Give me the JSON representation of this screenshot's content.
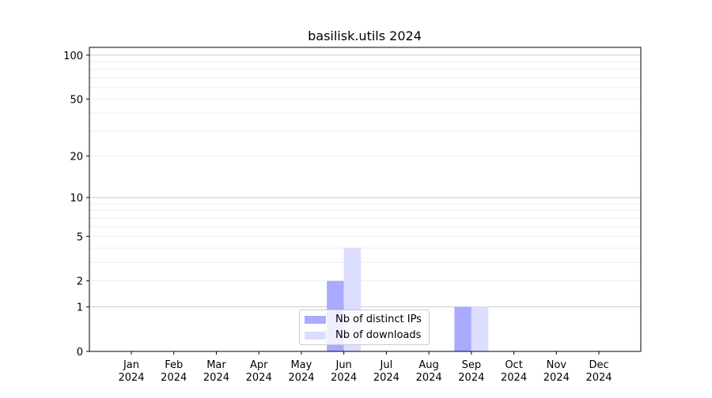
{
  "chart_data": {
    "type": "bar",
    "title": "basilisk.utils 2024",
    "categories": [
      "Jan\n2024",
      "Feb\n2024",
      "Mar\n2024",
      "Apr\n2024",
      "May\n2024",
      "Jun\n2024",
      "Jul\n2024",
      "Aug\n2024",
      "Sep\n2024",
      "Oct\n2024",
      "Nov\n2024",
      "Dec\n2024"
    ],
    "category_labels": [
      [
        "Jan",
        "2024"
      ],
      [
        "Feb",
        "2024"
      ],
      [
        "Mar",
        "2024"
      ],
      [
        "Apr",
        "2024"
      ],
      [
        "May",
        "2024"
      ],
      [
        "Jun",
        "2024"
      ],
      [
        "Jul",
        "2024"
      ],
      [
        "Aug",
        "2024"
      ],
      [
        "Sep",
        "2024"
      ],
      [
        "Oct",
        "2024"
      ],
      [
        "Nov",
        "2024"
      ],
      [
        "Dec",
        "2024"
      ]
    ],
    "series": [
      {
        "name": "Nb of distinct IPs",
        "color": "#aaaaff",
        "values": [
          0,
          0,
          0,
          0,
          0,
          2,
          0,
          0,
          1,
          0,
          0,
          0
        ]
      },
      {
        "name": "Nb of downloads",
        "color": "#ddddff",
        "values": [
          0,
          0,
          0,
          0,
          0,
          4,
          0,
          0,
          1,
          0,
          0,
          0
        ]
      }
    ],
    "yscale": "log(1+y)",
    "ylim": [
      0,
      113
    ],
    "yticks": [
      0,
      1,
      2,
      5,
      10,
      20,
      50,
      100
    ],
    "grid": true,
    "legend": "bottom-center",
    "xlabel": "",
    "ylabel": ""
  }
}
